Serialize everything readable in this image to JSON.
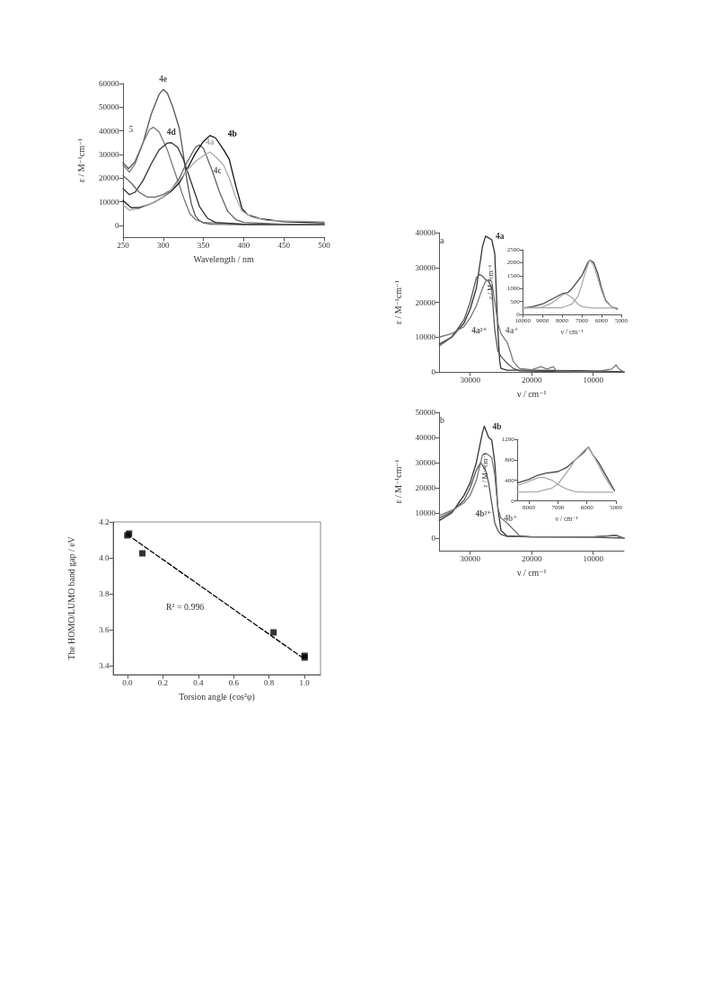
{
  "chart_data": [
    {
      "type": "line",
      "xlabel": "Wavelength / nm",
      "ylabel": "ε / M⁻¹cm⁻¹",
      "xlim": [
        250,
        500
      ],
      "xticks": [
        250,
        300,
        350,
        400,
        450,
        500
      ],
      "ylim": [
        -5000,
        60000
      ],
      "yticks": [
        0,
        10000,
        20000,
        30000,
        40000,
        50000,
        60000
      ],
      "series": [
        {
          "name": "4e",
          "color": "#555555",
          "x": [
            250,
            257,
            265,
            275,
            285,
            295,
            300,
            305,
            312,
            320,
            325,
            330,
            335,
            340,
            345,
            350,
            360,
            400,
            500
          ],
          "values": [
            26500,
            24000,
            27000,
            35000,
            47000,
            55500,
            57500,
            56000,
            50000,
            41000,
            30000,
            18000,
            9000,
            4000,
            2000,
            1000,
            500,
            300,
            300
          ]
        },
        {
          "name": "5",
          "color": "#777777",
          "x": [
            250,
            258,
            265,
            275,
            283,
            288,
            295,
            305,
            315,
            325,
            333,
            340,
            350,
            400,
            500
          ],
          "values": [
            25500,
            22500,
            26000,
            35000,
            40500,
            41500,
            39500,
            32000,
            22000,
            12000,
            5000,
            2500,
            1200,
            500,
            300
          ]
        },
        {
          "name": "4d",
          "color": "#333333",
          "x": [
            250,
            258,
            265,
            275,
            285,
            295,
            305,
            310,
            318,
            325,
            335,
            345,
            355,
            365,
            400,
            500
          ],
          "values": [
            15500,
            13000,
            14000,
            19000,
            26000,
            32000,
            34800,
            35000,
            33000,
            28000,
            18000,
            8000,
            3000,
            1200,
            500,
            300
          ]
        },
        {
          "name": "4c",
          "color": "#646464",
          "x": [
            250,
            260,
            270,
            280,
            290,
            300,
            310,
            320,
            330,
            340,
            345,
            350,
            360,
            370,
            380,
            390,
            400,
            450,
            500
          ],
          "values": [
            21000,
            18000,
            14000,
            12000,
            12000,
            13000,
            15000,
            20000,
            27000,
            33000,
            34000,
            32500,
            24000,
            14000,
            6000,
            2500,
            1200,
            500,
            300
          ]
        },
        {
          "name": "4b",
          "color": "#111111",
          "x": [
            250,
            260,
            270,
            280,
            290,
            300,
            310,
            320,
            330,
            340,
            350,
            358,
            365,
            375,
            382,
            390,
            398,
            405,
            420,
            450,
            500
          ],
          "values": [
            10500,
            7500,
            7500,
            8500,
            10000,
            12000,
            14500,
            18000,
            24000,
            30500,
            35500,
            38000,
            37000,
            32000,
            28000,
            17000,
            7000,
            4500,
            2800,
            1500,
            1000
          ]
        },
        {
          "name": "4a",
          "color": "#aaaaaa",
          "x": [
            250,
            258,
            270,
            280,
            290,
            300,
            310,
            320,
            330,
            340,
            350,
            358,
            365,
            375,
            382,
            390,
            398,
            410,
            430,
            460,
            500
          ],
          "values": [
            8500,
            6500,
            7000,
            8500,
            10000,
            12000,
            15000,
            19000,
            23500,
            27000,
            29500,
            31000,
            29000,
            25500,
            20000,
            12000,
            6000,
            3500,
            2000,
            1800,
            1500
          ]
        }
      ]
    },
    {
      "type": "line",
      "xlabel": "ν / cm⁻¹",
      "ylabel": "ε / M⁻¹cm⁻¹",
      "xlim": [
        35000,
        5000
      ],
      "xticks": [
        30000,
        20000,
        10000
      ],
      "ylim": [
        0,
        40000
      ],
      "yticks": [
        0,
        10000,
        20000,
        30000,
        40000
      ],
      "annotations": [
        "a"
      ],
      "series": [
        {
          "name": "4a",
          "color": "#333333",
          "x": [
            35000,
            33000,
            31000,
            30000,
            29000,
            28500,
            28000,
            27500,
            27000,
            26500,
            26000,
            25800,
            25500,
            25200,
            25000,
            24000,
            20000,
            10000,
            5000
          ],
          "values": [
            8000,
            10000,
            14000,
            18000,
            24000,
            30000,
            36000,
            39000,
            38500,
            38000,
            34000,
            25000,
            12000,
            3000,
            1000,
            500,
            500,
            300,
            0
          ]
        },
        {
          "name": "4a²⁺",
          "color": "#555555",
          "x": [
            35000,
            33000,
            31000,
            30000,
            29000,
            28500,
            28000,
            27500,
            27000,
            26500,
            26000,
            25500,
            25000,
            24000,
            23000,
            22000,
            15000,
            5000
          ],
          "values": [
            7500,
            10000,
            15000,
            20000,
            27000,
            28000,
            27500,
            26500,
            26000,
            24000,
            12000,
            6000,
            4500,
            2500,
            1000,
            300,
            0,
            0
          ]
        },
        {
          "name": "4a⁺",
          "color": "#777777",
          "x": [
            35000,
            33000,
            31000,
            30000,
            29000,
            28000,
            27500,
            27000,
            26500,
            26000,
            25500,
            25000,
            24000,
            23500,
            23000,
            22000,
            20000,
            18500,
            17500,
            16500,
            16000,
            12000,
            9000,
            7000,
            6300,
            5800,
            5000
          ],
          "values": [
            10000,
            11000,
            13000,
            15500,
            19000,
            24000,
            26000,
            26500,
            26000,
            20000,
            14000,
            11000,
            8500,
            6000,
            3000,
            1000,
            600,
            1500,
            800,
            1500,
            300,
            0,
            300,
            800,
            2000,
            800,
            0
          ]
        }
      ]
    },
    {
      "type": "line",
      "xlabel": "ν / cm⁻¹",
      "ylabel": "ε / M⁻¹cm⁻¹",
      "xlim": [
        10000,
        5000
      ],
      "xticks": [
        10000,
        9000,
        8000,
        7000,
        6000,
        5000
      ],
      "ylim": [
        0,
        2500
      ],
      "yticks": [
        0,
        500,
        1000,
        1500,
        2000,
        2500
      ],
      "series": [
        {
          "color": "#444444",
          "x": [
            10000,
            9500,
            9000,
            8500,
            8000,
            7700,
            7500,
            7000,
            6700,
            6600,
            6400,
            6200,
            6000,
            5800,
            5500,
            5200
          ],
          "values": [
            250,
            300,
            400,
            600,
            800,
            850,
            1000,
            1500,
            2000,
            2100,
            2000,
            1600,
            1000,
            550,
            300,
            200
          ]
        },
        {
          "color": "#aaaaaa",
          "x": [
            10000,
            9000,
            8500,
            8000,
            7800,
            7500,
            7200,
            7000,
            6500,
            5200
          ],
          "values": [
            250,
            280,
            450,
            750,
            800,
            650,
            400,
            300,
            250,
            250
          ]
        },
        {
          "color": "#aaaaaa",
          "x": [
            10000,
            8000,
            7500,
            7200,
            7000,
            6800,
            6600,
            6400,
            6200,
            6000,
            5800,
            5500,
            5200
          ],
          "values": [
            250,
            260,
            400,
            700,
            1150,
            1700,
            2100,
            1900,
            1400,
            900,
            500,
            300,
            250
          ]
        }
      ]
    },
    {
      "type": "line",
      "xlabel": "ν / cm⁻¹",
      "ylabel": "ε / M⁻¹cm⁻¹",
      "xlim": [
        35000,
        5000
      ],
      "xticks": [
        30000,
        20000,
        10000
      ],
      "ylim": [
        -5000,
        50000
      ],
      "yticks": [
        0,
        10000,
        20000,
        30000,
        40000,
        50000
      ],
      "annotations": [
        "b"
      ],
      "series": [
        {
          "name": "4b",
          "color": "#333333",
          "x": [
            35000,
            33000,
            31000,
            30000,
            29000,
            28500,
            28000,
            27700,
            27300,
            27000,
            26500,
            26000,
            25500,
            25000,
            24000,
            20000,
            10000,
            6300,
            5000
          ],
          "values": [
            7000,
            10000,
            17000,
            22000,
            30000,
            36000,
            42000,
            44500,
            42000,
            40000,
            39000,
            30000,
            12000,
            3000,
            800,
            500,
            500,
            1000,
            0
          ]
        },
        {
          "name": "4b²⁺",
          "color": "#555555",
          "x": [
            35000,
            33000,
            31000,
            30000,
            29000,
            28300,
            28000,
            27500,
            27000,
            26500,
            26000,
            25500,
            25000,
            24000,
            20000,
            10000,
            5000
          ],
          "values": [
            8000,
            10500,
            15000,
            20000,
            27000,
            30000,
            29000,
            27000,
            22000,
            14000,
            6000,
            3000,
            1500,
            700,
            500,
            300,
            0
          ]
        },
        {
          "name": "4b⁺",
          "color": "#777777",
          "x": [
            35000,
            33000,
            31000,
            30000,
            29000,
            28500,
            28000,
            27500,
            27000,
            26500,
            26000,
            25500,
            25000,
            24000,
            23000,
            22000,
            20000,
            10000,
            6300,
            5000
          ],
          "values": [
            9000,
            11000,
            14000,
            17000,
            23000,
            28000,
            33000,
            33700,
            33000,
            32000,
            25000,
            12000,
            8000,
            6000,
            3500,
            1000,
            500,
            500,
            1200,
            0
          ]
        }
      ]
    },
    {
      "type": "line",
      "xlabel": "ν / cm⁻¹",
      "ylabel": "ε / M⁻¹cm⁻¹",
      "xlim": [
        8400,
        5000
      ],
      "xticks": [
        8000,
        7000,
        6000,
        5000
      ],
      "ylim": [
        0,
        1200
      ],
      "yticks": [
        0,
        400,
        800,
        1200
      ],
      "series": [
        {
          "color": "#444444",
          "x": [
            8400,
            8000,
            7700,
            7400,
            7000,
            6700,
            6400,
            6100,
            5950,
            5800,
            5600,
            5400,
            5200,
            5050
          ],
          "values": [
            350,
            420,
            500,
            540,
            570,
            650,
            800,
            950,
            1050,
            900,
            750,
            550,
            350,
            200
          ]
        },
        {
          "color": "#aaaaaa",
          "x": [
            8400,
            8000,
            7700,
            7500,
            7200,
            7000,
            6700,
            6400,
            6000,
            5100
          ],
          "values": [
            300,
            380,
            450,
            460,
            400,
            320,
            230,
            180,
            170,
            170
          ]
        },
        {
          "color": "#aaaaaa",
          "x": [
            8400,
            7700,
            7200,
            7000,
            6700,
            6400,
            6100,
            5950,
            5800,
            5600,
            5400,
            5200,
            5100
          ],
          "values": [
            170,
            180,
            250,
            330,
            550,
            800,
            980,
            1040,
            900,
            700,
            480,
            300,
            220
          ]
        }
      ]
    },
    {
      "type": "scatter",
      "xlabel": "Torsion angle (cos²φ)",
      "ylabel": "The HOMO/LUMO band gap / eV",
      "xlim": [
        -0.08,
        1.09
      ],
      "xticks": [
        {
          "value": 0,
          "label": "0.0"
        },
        {
          "value": 0.2,
          "label": "0.2"
        },
        {
          "value": 0.4,
          "label": "0.4"
        },
        {
          "value": 0.6,
          "label": "0.6"
        },
        {
          "value": 0.8,
          "label": "0.8"
        },
        {
          "value": 1,
          "label": "1.0"
        }
      ],
      "ylim": [
        3.35,
        4.2
      ],
      "yticks": [
        3.4,
        3.6,
        3.8,
        {
          "value": 4,
          "label": "4.0"
        },
        4.2
      ],
      "annotations": [
        "R² = 0.996"
      ],
      "series": [
        {
          "color": "#000000",
          "marker": "square",
          "x": [
            0.01,
            0,
            0.085,
            0.825,
            1,
            1
          ],
          "values": [
            4.135,
            4.125,
            4.025,
            3.585,
            3.455,
            3.445
          ]
        },
        {
          "type": "line",
          "color": "#000000",
          "line_style": "dashed",
          "x": [
            0,
            0.98
          ],
          "values": [
            4.13,
            3.45
          ]
        }
      ]
    }
  ]
}
